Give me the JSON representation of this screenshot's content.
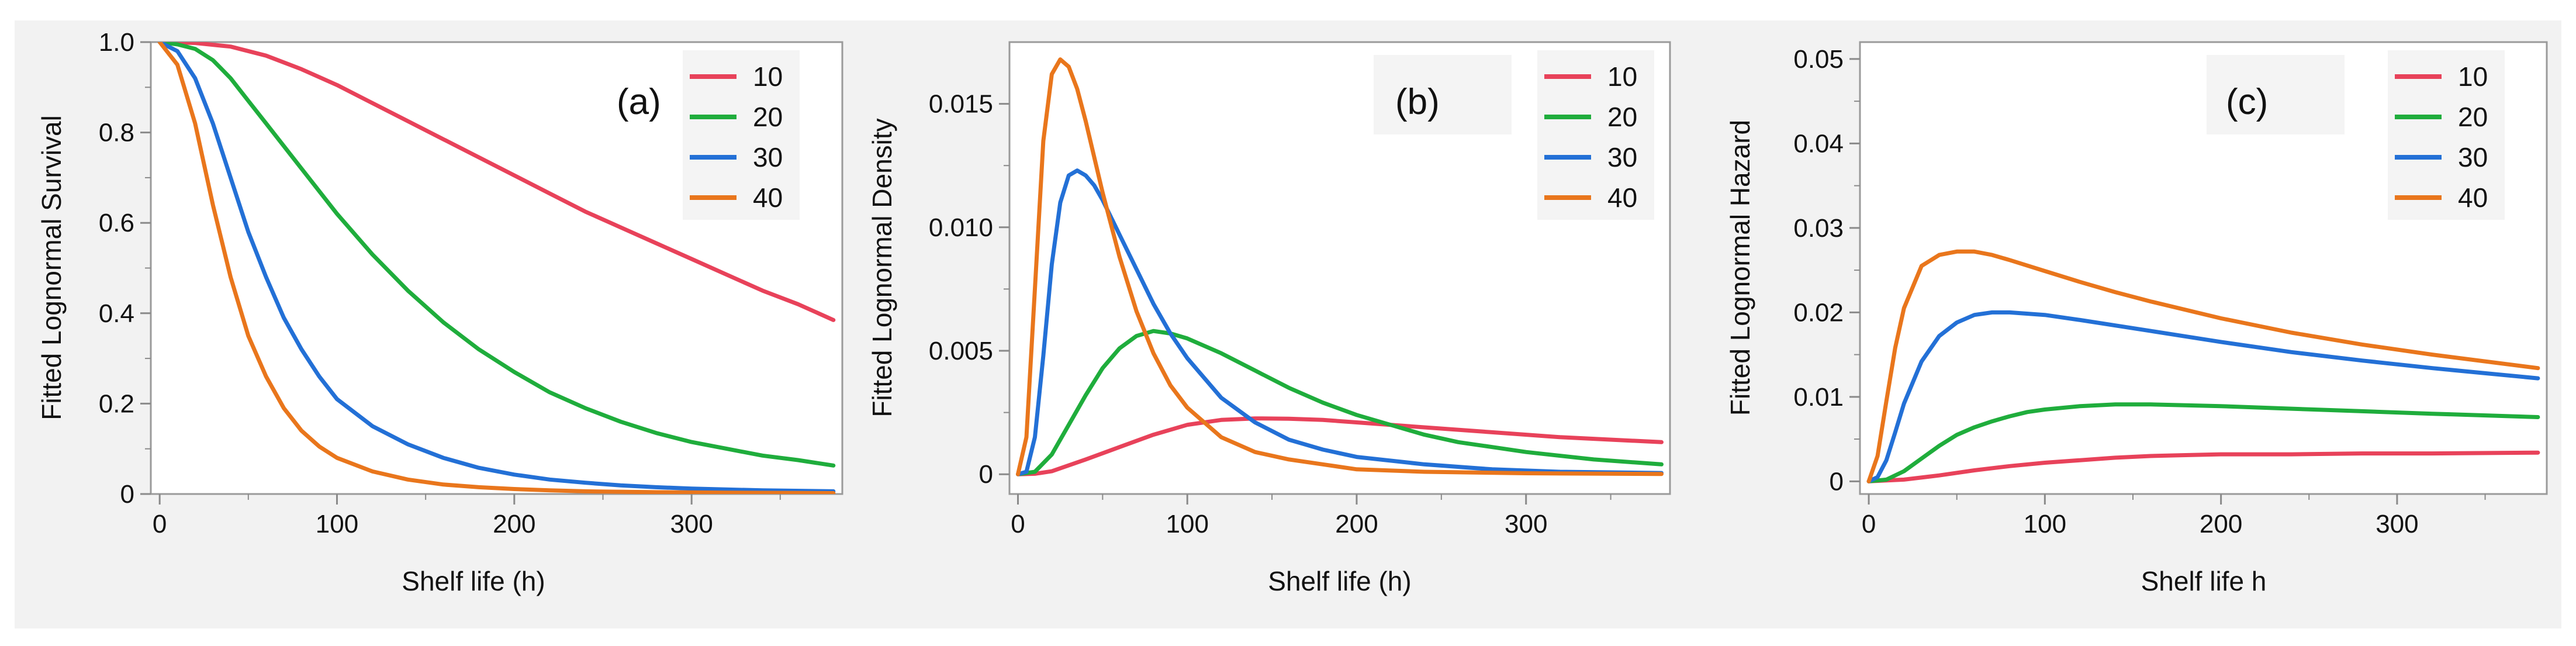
{
  "colors": {
    "series": [
      "#e8425a",
      "#1fad3c",
      "#2370d6",
      "#e9761c"
    ],
    "panel_bg": "#f2f2f2",
    "plot_bg": "#ffffff",
    "axis": "#9a9a9a",
    "legend_bg": "#f4f4f4"
  },
  "chart_data": [
    {
      "type": "line",
      "panel_label": "(a)",
      "xlabel": "Shelf life (h)",
      "ylabel": "Fitted Lognormal Survival",
      "xlim": [
        -5,
        385
      ],
      "ylim": [
        0,
        1.0
      ],
      "xticks": [
        0,
        100,
        200,
        300
      ],
      "xtick_labels": [
        "0",
        "100",
        "200",
        "300"
      ],
      "yticks": [
        0,
        0.2,
        0.4,
        0.6,
        0.8,
        1.0
      ],
      "ytick_labels": [
        "0",
        "0.2",
        "0.4",
        "0.6",
        "0.8",
        "1.0"
      ],
      "legend": [
        "10",
        "20",
        "30",
        "40"
      ],
      "series": [
        {
          "name": "10",
          "x": [
            0,
            20,
            40,
            60,
            80,
            100,
            120,
            140,
            160,
            180,
            200,
            220,
            240,
            260,
            280,
            300,
            320,
            340,
            360,
            380
          ],
          "y": [
            1.0,
            0.998,
            0.99,
            0.97,
            0.94,
            0.905,
            0.865,
            0.825,
            0.785,
            0.745,
            0.705,
            0.665,
            0.625,
            0.59,
            0.555,
            0.52,
            0.485,
            0.45,
            0.42,
            0.385
          ]
        },
        {
          "name": "20",
          "x": [
            0,
            10,
            20,
            30,
            40,
            50,
            60,
            80,
            100,
            120,
            140,
            160,
            180,
            200,
            220,
            240,
            260,
            280,
            300,
            320,
            340,
            360,
            380
          ],
          "y": [
            1.0,
            0.995,
            0.985,
            0.96,
            0.92,
            0.87,
            0.82,
            0.72,
            0.62,
            0.53,
            0.45,
            0.38,
            0.32,
            0.27,
            0.225,
            0.19,
            0.16,
            0.135,
            0.115,
            0.1,
            0.085,
            0.075,
            0.063
          ]
        },
        {
          "name": "30",
          "x": [
            0,
            10,
            20,
            30,
            40,
            50,
            60,
            70,
            80,
            90,
            100,
            120,
            140,
            160,
            180,
            200,
            220,
            240,
            260,
            280,
            300,
            340,
            380
          ],
          "y": [
            1.0,
            0.98,
            0.92,
            0.82,
            0.7,
            0.58,
            0.48,
            0.39,
            0.32,
            0.26,
            0.21,
            0.15,
            0.11,
            0.08,
            0.058,
            0.043,
            0.032,
            0.025,
            0.019,
            0.015,
            0.012,
            0.008,
            0.006
          ]
        },
        {
          "name": "40",
          "x": [
            0,
            10,
            20,
            30,
            40,
            50,
            60,
            70,
            80,
            90,
            100,
            120,
            140,
            160,
            180,
            200,
            220,
            240,
            280,
            320,
            380
          ],
          "y": [
            1.0,
            0.95,
            0.82,
            0.64,
            0.48,
            0.35,
            0.26,
            0.19,
            0.14,
            0.105,
            0.08,
            0.05,
            0.032,
            0.021,
            0.015,
            0.011,
            0.008,
            0.006,
            0.004,
            0.003,
            0.002
          ]
        }
      ]
    },
    {
      "type": "line",
      "panel_label": "(b)",
      "xlabel": "Shelf life (h)",
      "ylabel": "Fitted Lognormal Density",
      "xlim": [
        -5,
        385
      ],
      "ylim": [
        -0.0008,
        0.0175
      ],
      "xticks": [
        0,
        100,
        200,
        300
      ],
      "xtick_labels": [
        "0",
        "100",
        "200",
        "300"
      ],
      "yticks": [
        0,
        0.005,
        0.01,
        0.015
      ],
      "ytick_labels": [
        "0",
        "0.005",
        "0.010",
        "0.015"
      ],
      "legend": [
        "10",
        "20",
        "30",
        "40"
      ],
      "series": [
        {
          "name": "10",
          "x": [
            0,
            10,
            20,
            40,
            60,
            80,
            100,
            120,
            140,
            160,
            180,
            200,
            240,
            280,
            320,
            380
          ],
          "y": [
            0,
            2e-05,
            0.00012,
            0.0006,
            0.0011,
            0.0016,
            0.002,
            0.0022,
            0.00226,
            0.00225,
            0.0022,
            0.0021,
            0.0019,
            0.0017,
            0.0015,
            0.0013
          ]
        },
        {
          "name": "20",
          "x": [
            0,
            10,
            20,
            30,
            40,
            50,
            60,
            70,
            80,
            90,
            100,
            120,
            140,
            160,
            180,
            200,
            220,
            240,
            260,
            280,
            300,
            340,
            380
          ],
          "y": [
            0,
            0.0001,
            0.0008,
            0.002,
            0.0032,
            0.0043,
            0.0051,
            0.0056,
            0.0058,
            0.0057,
            0.0055,
            0.0049,
            0.0042,
            0.0035,
            0.0029,
            0.0024,
            0.002,
            0.0016,
            0.0013,
            0.0011,
            0.0009,
            0.0006,
            0.0004
          ]
        },
        {
          "name": "30",
          "x": [
            0,
            5,
            10,
            15,
            20,
            25,
            30,
            35,
            40,
            45,
            50,
            60,
            70,
            80,
            90,
            100,
            120,
            140,
            160,
            180,
            200,
            240,
            280,
            320,
            380
          ],
          "y": [
            0,
            0.0001,
            0.0015,
            0.0048,
            0.0085,
            0.011,
            0.0121,
            0.0123,
            0.0121,
            0.0117,
            0.0111,
            0.0097,
            0.0083,
            0.0069,
            0.0057,
            0.0047,
            0.0031,
            0.0021,
            0.0014,
            0.001,
            0.0007,
            0.0004,
            0.0002,
            0.0001,
            5e-05
          ]
        },
        {
          "name": "40",
          "x": [
            0,
            5,
            10,
            15,
            20,
            25,
            30,
            35,
            40,
            50,
            60,
            70,
            80,
            90,
            100,
            120,
            140,
            160,
            180,
            200,
            240,
            300,
            380
          ],
          "y": [
            0,
            0.0015,
            0.0075,
            0.0135,
            0.0162,
            0.0168,
            0.0165,
            0.0156,
            0.0143,
            0.0114,
            0.0088,
            0.0066,
            0.0049,
            0.0036,
            0.0027,
            0.0015,
            0.0009,
            0.0006,
            0.0004,
            0.0002,
            0.0001,
            4e-05,
            1e-05
          ]
        }
      ]
    },
    {
      "type": "line",
      "panel_label": "(c)",
      "xlabel": "Shelf life h",
      "ylabel": "Fitted Lognormal Hazard",
      "xlim": [
        -5,
        385
      ],
      "ylim": [
        -0.0015,
        0.052
      ],
      "xticks": [
        0,
        100,
        200,
        300
      ],
      "xtick_labels": [
        "0",
        "100",
        "200",
        "300"
      ],
      "yticks": [
        0,
        0.01,
        0.02,
        0.03,
        0.04,
        0.05
      ],
      "ytick_labels": [
        "0",
        "0.01",
        "0.02",
        "0.03",
        "0.04",
        "0.05"
      ],
      "legend": [
        "10",
        "20",
        "30",
        "40"
      ],
      "series": [
        {
          "name": "10",
          "x": [
            0,
            20,
            40,
            60,
            80,
            100,
            120,
            140,
            160,
            180,
            200,
            240,
            280,
            320,
            380
          ],
          "y": [
            0,
            0.0002,
            0.0007,
            0.0013,
            0.0018,
            0.0022,
            0.0025,
            0.0028,
            0.003,
            0.0031,
            0.0032,
            0.0032,
            0.0033,
            0.0033,
            0.0034
          ]
        },
        {
          "name": "20",
          "x": [
            0,
            10,
            20,
            30,
            40,
            50,
            60,
            70,
            80,
            90,
            100,
            120,
            140,
            160,
            180,
            200,
            240,
            280,
            320,
            380
          ],
          "y": [
            0,
            0.0002,
            0.0012,
            0.0027,
            0.0042,
            0.0055,
            0.0064,
            0.0071,
            0.0077,
            0.0082,
            0.0085,
            0.0089,
            0.0091,
            0.0091,
            0.009,
            0.0089,
            0.0086,
            0.0083,
            0.008,
            0.0076
          ]
        },
        {
          "name": "30",
          "x": [
            0,
            5,
            10,
            15,
            20,
            30,
            40,
            50,
            60,
            70,
            80,
            100,
            120,
            160,
            200,
            240,
            280,
            320,
            380
          ],
          "y": [
            0,
            0.0005,
            0.0025,
            0.0058,
            0.0092,
            0.0142,
            0.0172,
            0.0188,
            0.0197,
            0.02,
            0.02,
            0.0197,
            0.0191,
            0.0178,
            0.0165,
            0.0153,
            0.0143,
            0.0134,
            0.0122
          ]
        },
        {
          "name": "40",
          "x": [
            0,
            5,
            10,
            15,
            20,
            30,
            40,
            50,
            60,
            70,
            80,
            100,
            120,
            140,
            160,
            200,
            240,
            280,
            320,
            380
          ],
          "y": [
            0,
            0.003,
            0.0095,
            0.0158,
            0.0205,
            0.0255,
            0.0268,
            0.0272,
            0.0272,
            0.0268,
            0.0262,
            0.0249,
            0.0236,
            0.0224,
            0.0213,
            0.0193,
            0.0176,
            0.0162,
            0.015,
            0.0134
          ]
        }
      ]
    }
  ]
}
